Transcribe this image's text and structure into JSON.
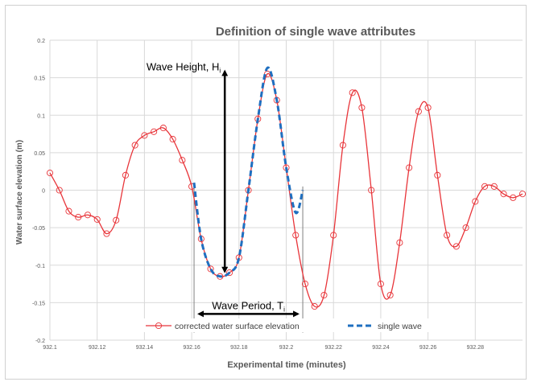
{
  "chart_data": {
    "type": "line",
    "title": "Definition of single wave attributes",
    "xlabel": "Experimental time (minutes)",
    "ylabel": "Water surface elevation (m)",
    "xlim": [
      932.1,
      932.3
    ],
    "ylim": [
      -0.2,
      0.2
    ],
    "x_ticks": [
      "932.1",
      "932.12",
      "932.14",
      "932.16",
      "932.18",
      "932.2",
      "932.22",
      "932.24",
      "932.26",
      "932.28"
    ],
    "y_ticks": [
      "0.2",
      "0.15",
      "0.1",
      "0.05",
      "0",
      "-0.05",
      "-0.1",
      "-0.15",
      "-0.2"
    ],
    "grid": true,
    "legend_position": "bottom-inside",
    "colors": {
      "corrected": "#e8353a",
      "single": "#1f6fc0",
      "grid": "#d9d9d9",
      "arrow": "#000000",
      "guide": "#808080"
    },
    "series": [
      {
        "name": "corrected water surface elevation",
        "style": "solid-line-open-circles",
        "x": [
          932.1,
          932.104,
          932.108,
          932.112,
          932.116,
          932.12,
          932.124,
          932.128,
          932.132,
          932.136,
          932.14,
          932.144,
          932.148,
          932.152,
          932.156,
          932.16,
          932.164,
          932.168,
          932.172,
          932.176,
          932.18,
          932.184,
          932.188,
          932.192,
          932.196,
          932.2,
          932.204,
          932.208,
          932.212,
          932.216,
          932.22,
          932.224,
          932.228,
          932.232,
          932.236,
          932.24,
          932.244,
          932.248,
          932.252,
          932.256,
          932.26,
          932.264,
          932.268,
          932.272,
          932.276,
          932.28,
          932.284,
          932.288,
          932.292,
          932.296,
          932.3
        ],
        "y": [
          0.023,
          0.0,
          -0.028,
          -0.036,
          -0.033,
          -0.039,
          -0.058,
          -0.04,
          0.02,
          0.06,
          0.073,
          0.078,
          0.083,
          0.068,
          0.04,
          0.005,
          -0.065,
          -0.105,
          -0.115,
          -0.11,
          -0.09,
          0.0,
          0.095,
          0.155,
          0.12,
          0.03,
          -0.06,
          -0.125,
          -0.155,
          -0.14,
          -0.06,
          0.06,
          0.13,
          0.11,
          0.0,
          -0.125,
          -0.14,
          -0.07,
          0.03,
          0.105,
          0.11,
          0.02,
          -0.06,
          -0.075,
          -0.05,
          -0.015,
          0.005,
          0.005,
          -0.005,
          -0.01,
          -0.005
        ]
      },
      {
        "name": "single wave",
        "style": "dashed",
        "x": [
          932.161,
          932.164,
          932.168,
          932.172,
          932.176,
          932.18,
          932.184,
          932.188,
          932.192,
          932.196,
          932.2,
          932.204,
          932.207
        ],
        "y": [
          0.01,
          -0.065,
          -0.105,
          -0.115,
          -0.11,
          -0.09,
          0.0,
          0.095,
          0.163,
          0.12,
          0.03,
          -0.03,
          0.0
        ]
      }
    ],
    "annotations": {
      "height_label": "Wave Height, H",
      "height_sub": "i",
      "period_label": "Wave Period, T",
      "period_sub": "i",
      "height_arrow": {
        "x": 932.174,
        "y_top": 0.165,
        "y_bottom": -0.115
      },
      "period_arrow": {
        "x_start": 932.161,
        "x_end": 932.207,
        "y": -0.165
      },
      "guide_lines_x": [
        932.161,
        932.207
      ]
    }
  }
}
